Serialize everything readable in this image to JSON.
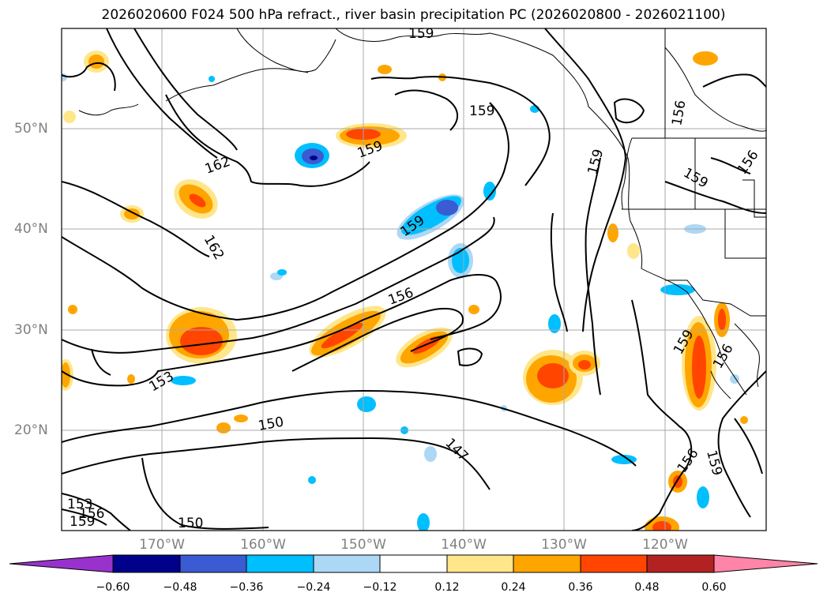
{
  "title": "2026020600 F024 500 hPa refract., river basin precipitation PC (2026020800 - 2026021100)",
  "lat_labels": [
    "50°N",
    "40°N",
    "30°N",
    "20°N"
  ],
  "lon_labels": [
    "170°W",
    "160°W",
    "150°W",
    "140°W",
    "130°W",
    "120°W"
  ],
  "contour_labels": [
    "159",
    "162",
    "159",
    "159",
    "159",
    "156",
    "159",
    "156",
    "162",
    "159",
    "156",
    "153",
    "150",
    "147",
    "156",
    "159",
    "159",
    "156",
    "153",
    "156",
    "159",
    "150"
  ],
  "colorbar": {
    "ticks": [
      "−0.60",
      "−0.48",
      "−0.36",
      "−0.24",
      "−0.12",
      "0.12",
      "0.24",
      "0.36",
      "0.48",
      "0.60"
    ],
    "colors": [
      "#9932cc",
      "#00008b",
      "#3a5bd1",
      "#00bfff",
      "#add8f5",
      "#ffffff",
      "#ffe68a",
      "#ffa500",
      "#ff4500",
      "#b22222",
      "#ff85a8"
    ]
  },
  "colors": {
    "contour": "#000000",
    "grid": "#a9a9a9",
    "label_gray": "#808080"
  }
}
